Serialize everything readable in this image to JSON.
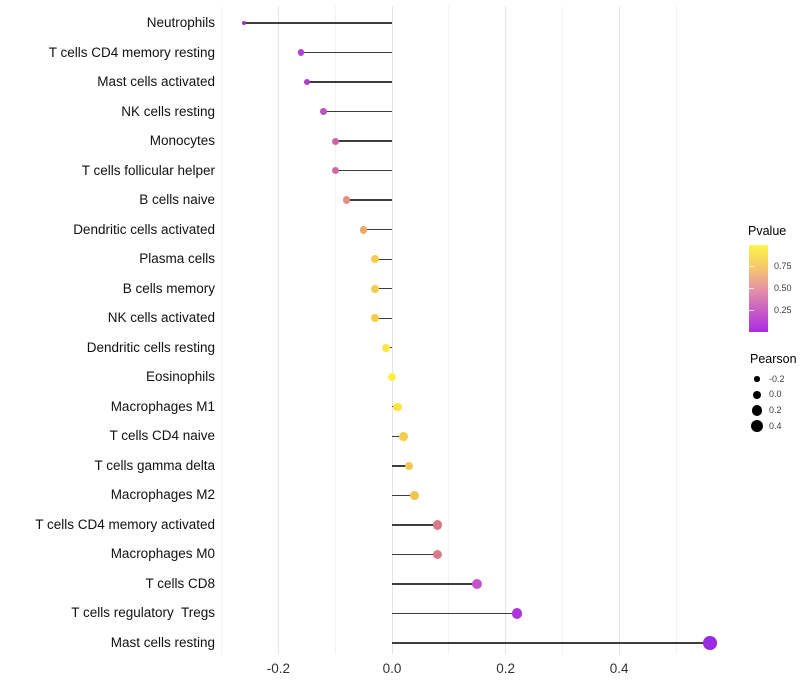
{
  "chart_data": {
    "type": "scatter",
    "subtype": "lollipop",
    "title": "",
    "xlabel": "",
    "ylabel": "",
    "x_tick_labels": [
      "-0.2",
      "0.0",
      "0.2",
      "0.4"
    ],
    "x_tick_values": [
      -0.2,
      0.0,
      0.2,
      0.4
    ],
    "x_minor_grid_values": [
      -0.3,
      -0.1,
      0.1,
      0.3,
      0.5
    ],
    "xlim": [
      -0.31,
      0.6
    ],
    "grid": "vertical-only",
    "baseline_x": 0.0,
    "points": [
      {
        "label": "Neutrophils",
        "pearson": -0.26,
        "pvalue_approx": 0.05,
        "color": "#9933CB"
      },
      {
        "label": "T cells CD4 memory resting",
        "pearson": -0.16,
        "pvalue_approx": 0.15,
        "color": "#B242CE"
      },
      {
        "label": "Mast cells activated",
        "pearson": -0.15,
        "pvalue_approx": 0.13,
        "color": "#B03ECB"
      },
      {
        "label": "NK cells resting",
        "pearson": -0.12,
        "pvalue_approx": 0.25,
        "color": "#C254B9"
      },
      {
        "label": "Monocytes",
        "pearson": -0.1,
        "pvalue_approx": 0.3,
        "color": "#CD63AA"
      },
      {
        "label": "T cells follicular helper",
        "pearson": -0.1,
        "pvalue_approx": 0.33,
        "color": "#D06BA3"
      },
      {
        "label": "B cells naive",
        "pearson": -0.08,
        "pvalue_approx": 0.5,
        "color": "#E38F80"
      },
      {
        "label": "Dendritic cells activated",
        "pearson": -0.05,
        "pvalue_approx": 0.6,
        "color": "#ECAB63"
      },
      {
        "label": "Plasma cells",
        "pearson": -0.03,
        "pvalue_approx": 0.76,
        "color": "#F5CD50"
      },
      {
        "label": "B cells memory",
        "pearson": -0.03,
        "pvalue_approx": 0.76,
        "color": "#F5CB4E"
      },
      {
        "label": "NK cells activated",
        "pearson": -0.03,
        "pvalue_approx": 0.76,
        "color": "#F5CC4C"
      },
      {
        "label": "Dendritic cells resting",
        "pearson": -0.01,
        "pvalue_approx": 0.9,
        "color": "#FAE644"
      },
      {
        "label": "Eosinophils",
        "pearson": 0.0,
        "pvalue_approx": 0.95,
        "color": "#FCF13F"
      },
      {
        "label": "Macrophages M1",
        "pearson": 0.01,
        "pvalue_approx": 0.88,
        "color": "#F9E443"
      },
      {
        "label": "T cells CD4 naive",
        "pearson": 0.02,
        "pvalue_approx": 0.77,
        "color": "#F3CD4E"
      },
      {
        "label": "T cells gamma delta",
        "pearson": 0.03,
        "pvalue_approx": 0.73,
        "color": "#F0C853"
      },
      {
        "label": "Macrophages M2",
        "pearson": 0.04,
        "pvalue_approx": 0.73,
        "color": "#F0C650"
      },
      {
        "label": "T cells CD4 memory activated",
        "pearson": 0.08,
        "pvalue_approx": 0.42,
        "color": "#D9798C"
      },
      {
        "label": "Macrophages M0",
        "pearson": 0.08,
        "pvalue_approx": 0.42,
        "color": "#D87A8C"
      },
      {
        "label": "T cells CD8",
        "pearson": 0.15,
        "pvalue_approx": 0.22,
        "color": "#C453CD"
      },
      {
        "label": "T cells regulatory  Tregs",
        "pearson": 0.22,
        "pvalue_approx": 0.12,
        "color": "#AE35DB"
      },
      {
        "label": "Mast cells resting",
        "pearson": 0.56,
        "pvalue_approx": 0.03,
        "color": "#9B2BE0"
      }
    ],
    "legend": {
      "position": "right",
      "pvalue": {
        "title": "Pvalue",
        "range": [
          0,
          1
        ],
        "tick_labels": [
          "0.75",
          "0.50",
          "0.25"
        ],
        "tick_values": [
          0.75,
          0.5,
          0.25
        ],
        "gradient_stops_bottom_to_top": [
          "#AC2BE3",
          "#C75FC5",
          "#E795A5",
          "#F6C868",
          "#FCF44C"
        ]
      },
      "pearson": {
        "title": "Pearson",
        "entries": [
          {
            "label": "-0.2",
            "value": -0.2
          },
          {
            "label": "0.0",
            "value": 0.0
          },
          {
            "label": "0.2",
            "value": 0.2
          },
          {
            "label": "0.4",
            "value": 0.4
          }
        ]
      }
    },
    "colors": {
      "segment": "#3d3d3d",
      "grid_major": "#e4e4e4",
      "grid_minor": "#f2f2f2",
      "axis_text": "#333333",
      "background": "#ffffff"
    }
  }
}
